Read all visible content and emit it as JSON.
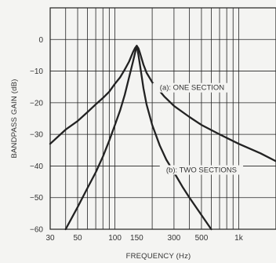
{
  "chart_data": {
    "type": "line",
    "xlabel": "FREQUENCY (Hz)",
    "ylabel": "BANDPASS GAIN (dB)",
    "xscale": "log",
    "xlim": [
      30,
      2000
    ],
    "ylim": [
      -60,
      10
    ],
    "grid": true,
    "xticks": [
      {
        "value": 30,
        "label": "30"
      },
      {
        "value": 50,
        "label": "50"
      },
      {
        "value": 100,
        "label": "100"
      },
      {
        "value": 150,
        "label": "150"
      },
      {
        "value": 300,
        "label": "300"
      },
      {
        "value": 500,
        "label": "500"
      },
      {
        "value": 1000,
        "label": "1k"
      }
    ],
    "yticks": [
      {
        "value": 0,
        "label": "0"
      },
      {
        "value": -10,
        "label": "−10"
      },
      {
        "value": -20,
        "label": "−20"
      },
      {
        "value": -30,
        "label": "−30"
      },
      {
        "value": -40,
        "label": "−40"
      },
      {
        "value": -50,
        "label": "−50"
      },
      {
        "value": -60,
        "label": "−60"
      }
    ],
    "series": [
      {
        "name": "(a): ONE SECTION",
        "x": [
          30,
          40,
          50,
          60,
          70,
          80,
          90,
          100,
          110,
          120,
          130,
          140,
          145,
          150,
          155,
          160,
          170,
          180,
          200,
          250,
          300,
          400,
          500,
          700,
          1000,
          1500,
          2000
        ],
        "y": [
          -33,
          -28.5,
          -25.8,
          -23,
          -20.5,
          -18.5,
          -16.5,
          -14,
          -12,
          -9.5,
          -7,
          -4,
          -2.8,
          -2,
          -2.8,
          -4.5,
          -8,
          -10.5,
          -13.5,
          -18,
          -21,
          -24.5,
          -27,
          -30,
          -33,
          -36,
          -38.5
        ]
      },
      {
        "name": "(b): TWO SECTIONS",
        "x": [
          40,
          50,
          60,
          70,
          80,
          90,
          100,
          110,
          120,
          130,
          140,
          145,
          150,
          155,
          160,
          170,
          180,
          200,
          230,
          260,
          300,
          350,
          400,
          500,
          600
        ],
        "y": [
          -60,
          -53,
          -47,
          -42,
          -37,
          -32,
          -27,
          -22.5,
          -17.5,
          -12,
          -7,
          -4.5,
          -2,
          -5,
          -8.5,
          -15.5,
          -20.5,
          -27,
          -33.5,
          -38,
          -42,
          -46.5,
          -50,
          -55.5,
          -60
        ]
      }
    ],
    "annotations": [
      {
        "text": "(a): ONE SECTION",
        "series": 0
      },
      {
        "text": "(b): TWO SECTIONS",
        "series": 1
      }
    ]
  }
}
